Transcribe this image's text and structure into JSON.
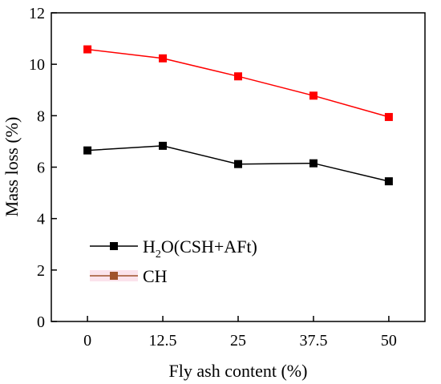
{
  "chart_data": {
    "type": "line",
    "title": "",
    "xlabel": "Fly ash content (%)",
    "ylabel": "Mass loss (%)",
    "x": [
      0,
      12.5,
      25,
      37.5,
      50
    ],
    "x_tick_labels": [
      "0",
      "12.5",
      "25",
      "37.5",
      "50"
    ],
    "xlim": [
      -6,
      56
    ],
    "ylim": [
      0,
      12
    ],
    "y_ticks": [
      0,
      2,
      4,
      6,
      8,
      10,
      12
    ],
    "y_tick_labels": [
      "0",
      "2",
      "4",
      "6",
      "8",
      "10",
      "12"
    ],
    "grid": false,
    "legend_position": "lower-left",
    "series": [
      {
        "name": "H2O(CSH+AFt)",
        "legend_parts": [
          "H",
          "2",
          "O(CSH+AFt)"
        ],
        "color": "#000000",
        "marker": "square",
        "values": [
          6.65,
          6.83,
          6.12,
          6.15,
          5.45
        ]
      },
      {
        "name": "CH",
        "legend_parts": [
          "CH"
        ],
        "color": "#ff0000",
        "legend_color": "#a0522d",
        "marker": "square",
        "values": [
          10.58,
          10.23,
          9.53,
          8.78,
          7.95
        ]
      }
    ]
  }
}
